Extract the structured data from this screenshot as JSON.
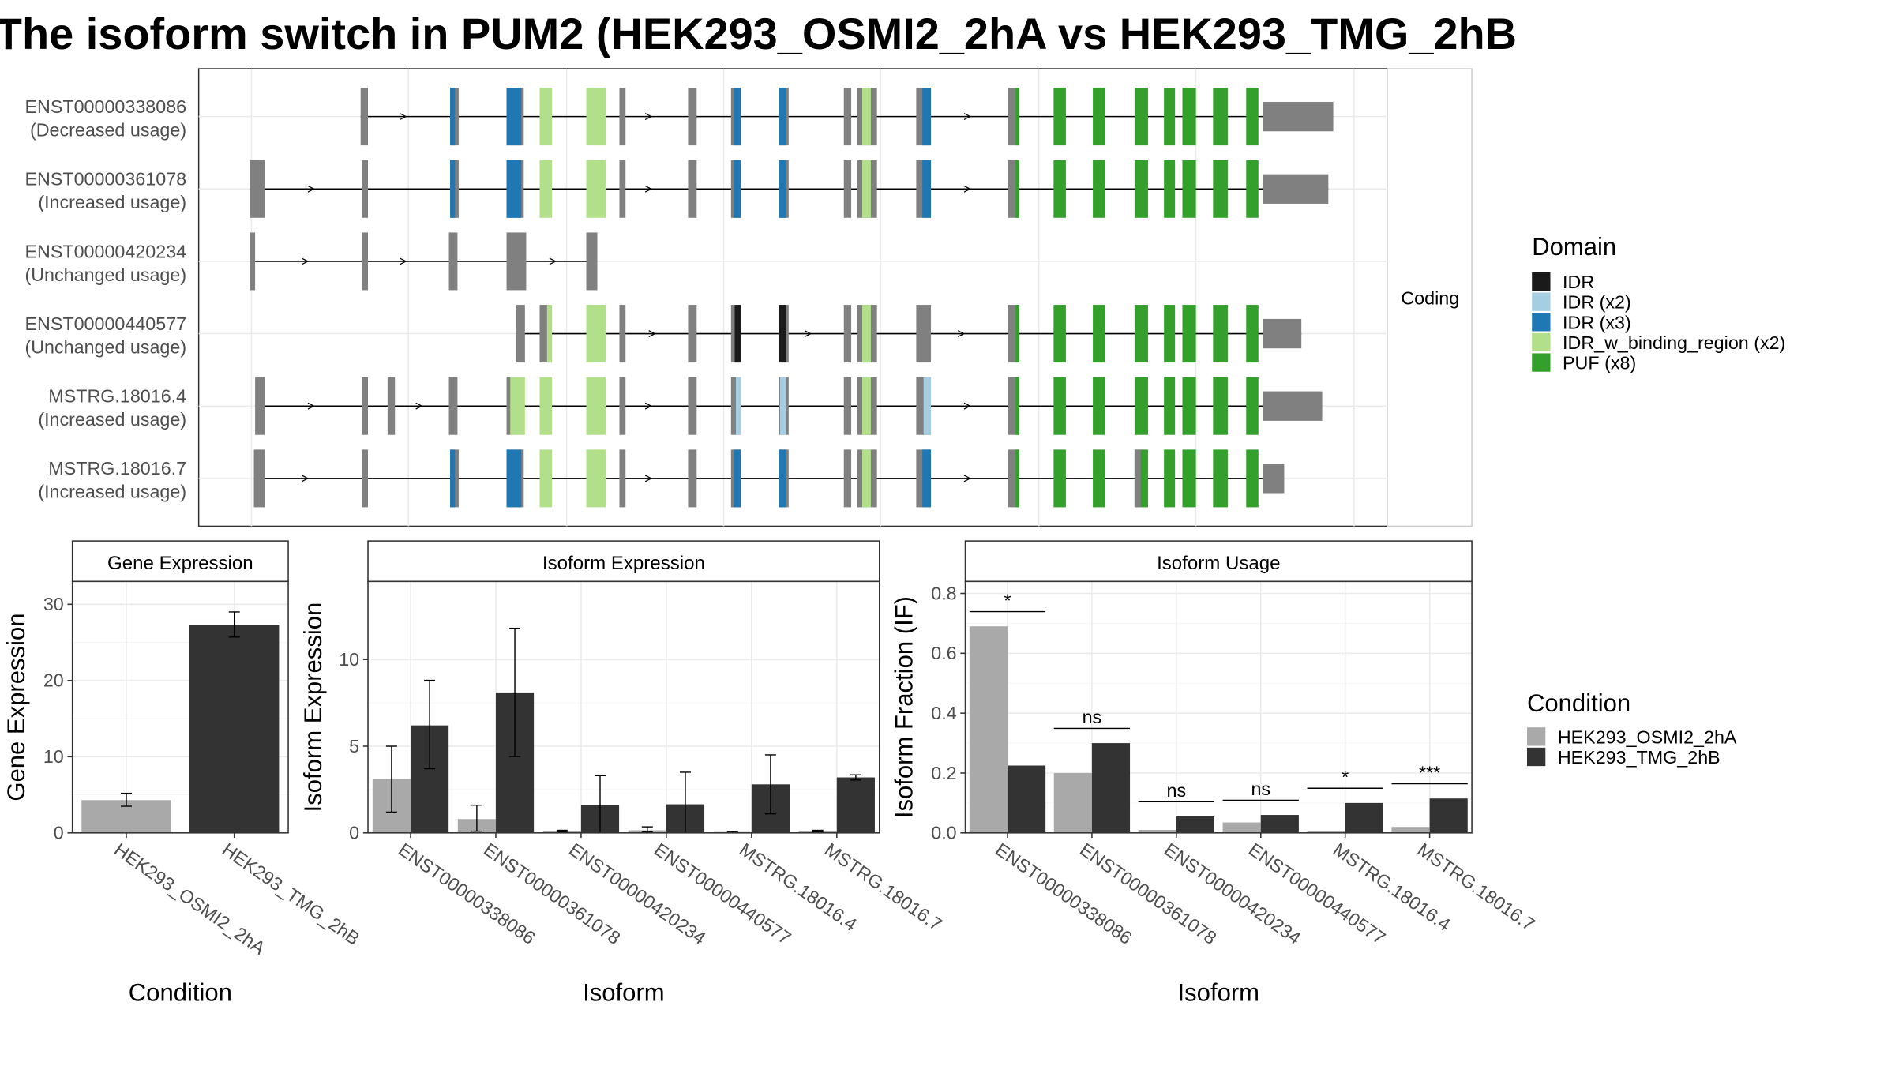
{
  "title": "The isoform switch in PUM2 (HEK293_OSMI2_2hA vs HEK293_TMG_2hB",
  "colors": {
    "IDR": "#1a1a1a",
    "IDR (x2)": "#a6cee3",
    "IDR (x3)": "#1f78b4",
    "IDR_w_binding_region (x2)": "#b2df8a",
    "PUF (x8)": "#33a02c",
    "exon": "#808080",
    "cond1": "#a9a9a9",
    "cond2": "#333333"
  },
  "transcripts": {
    "facet_label": "Coding",
    "items": [
      {
        "id": "ENST00000338086",
        "usage": "(Decreased usage)"
      },
      {
        "id": "ENST00000361078",
        "usage": "(Increased usage)"
      },
      {
        "id": "ENST00000420234",
        "usage": "(Unchanged usage)"
      },
      {
        "id": "ENST00000440577",
        "usage": "(Unchanged usage)"
      },
      {
        "id": "MSTRG.18016.4",
        "usage": "(Increased usage)"
      },
      {
        "id": "MSTRG.18016.7",
        "usage": "(Increased usage)"
      }
    ]
  },
  "domain_legend": {
    "title": "Domain",
    "items": [
      "IDR",
      "IDR (x2)",
      "IDR (x3)",
      "IDR_w_binding_region (x2)",
      "PUF (x8)"
    ]
  },
  "condition_legend": {
    "title": "Condition",
    "items": [
      "HEK293_OSMI2_2hA",
      "HEK293_TMG_2hB"
    ]
  },
  "chart_data": [
    {
      "type": "bar",
      "title": "Gene Expression",
      "xlabel": "Condition",
      "ylabel": "Gene Expression",
      "categories": [
        "HEK293_OSMI2_2hA",
        "HEK293_TMG_2hB"
      ],
      "values": [
        4.3,
        27.3
      ],
      "errors": [
        [
          3.5,
          5.2
        ],
        [
          25.7,
          29.0
        ]
      ],
      "ylim": [
        0,
        33
      ],
      "yticks": [
        0,
        10,
        20,
        30
      ]
    },
    {
      "type": "bar",
      "title": "Isoform Expression",
      "xlabel": "Isoform",
      "ylabel": "Isoform Expression",
      "categories": [
        "ENST00000338086",
        "ENST00000361078",
        "ENST00000420234",
        "ENST00000440577",
        "MSTRG.18016.4",
        "MSTRG.18016.7"
      ],
      "series": [
        {
          "name": "HEK293_OSMI2_2hA",
          "values": [
            3.1,
            0.8,
            0.1,
            0.15,
            0.05,
            0.1
          ],
          "errors": [
            [
              1.2,
              5.0
            ],
            [
              0.1,
              1.6
            ],
            [
              0.05,
              0.15
            ],
            [
              0.05,
              0.35
            ],
            [
              0.02,
              0.08
            ],
            [
              0.05,
              0.15
            ]
          ]
        },
        {
          "name": "HEK293_TMG_2hB",
          "values": [
            6.2,
            8.1,
            1.6,
            1.65,
            2.8,
            3.2
          ],
          "errors": [
            [
              3.7,
              8.8
            ],
            [
              4.4,
              11.8
            ],
            [
              0,
              3.3
            ],
            [
              0,
              3.5
            ],
            [
              1.1,
              4.5
            ],
            [
              3.05,
              3.35
            ]
          ]
        }
      ],
      "ylim": [
        0,
        14.5
      ],
      "yticks": [
        0,
        5,
        10
      ]
    },
    {
      "type": "bar",
      "title": "Isoform Usage",
      "xlabel": "Isoform",
      "ylabel": "Isoform Fraction (IF)",
      "categories": [
        "ENST00000338086",
        "ENST00000361078",
        "ENST00000420234",
        "ENST00000440577",
        "MSTRG.18016.4",
        "MSTRG.18016.7"
      ],
      "series": [
        {
          "name": "HEK293_OSMI2_2hA",
          "values": [
            0.69,
            0.2,
            0.01,
            0.035,
            0.005,
            0.02
          ]
        },
        {
          "name": "HEK293_TMG_2hB",
          "values": [
            0.225,
            0.3,
            0.055,
            0.06,
            0.1,
            0.115
          ]
        }
      ],
      "significance": [
        "*",
        "ns",
        "ns",
        "ns",
        "*",
        "***"
      ],
      "ylim": [
        0,
        0.84
      ],
      "yticks": [
        "0.0",
        "0.2",
        "0.4",
        "0.6",
        "0.8"
      ]
    }
  ]
}
